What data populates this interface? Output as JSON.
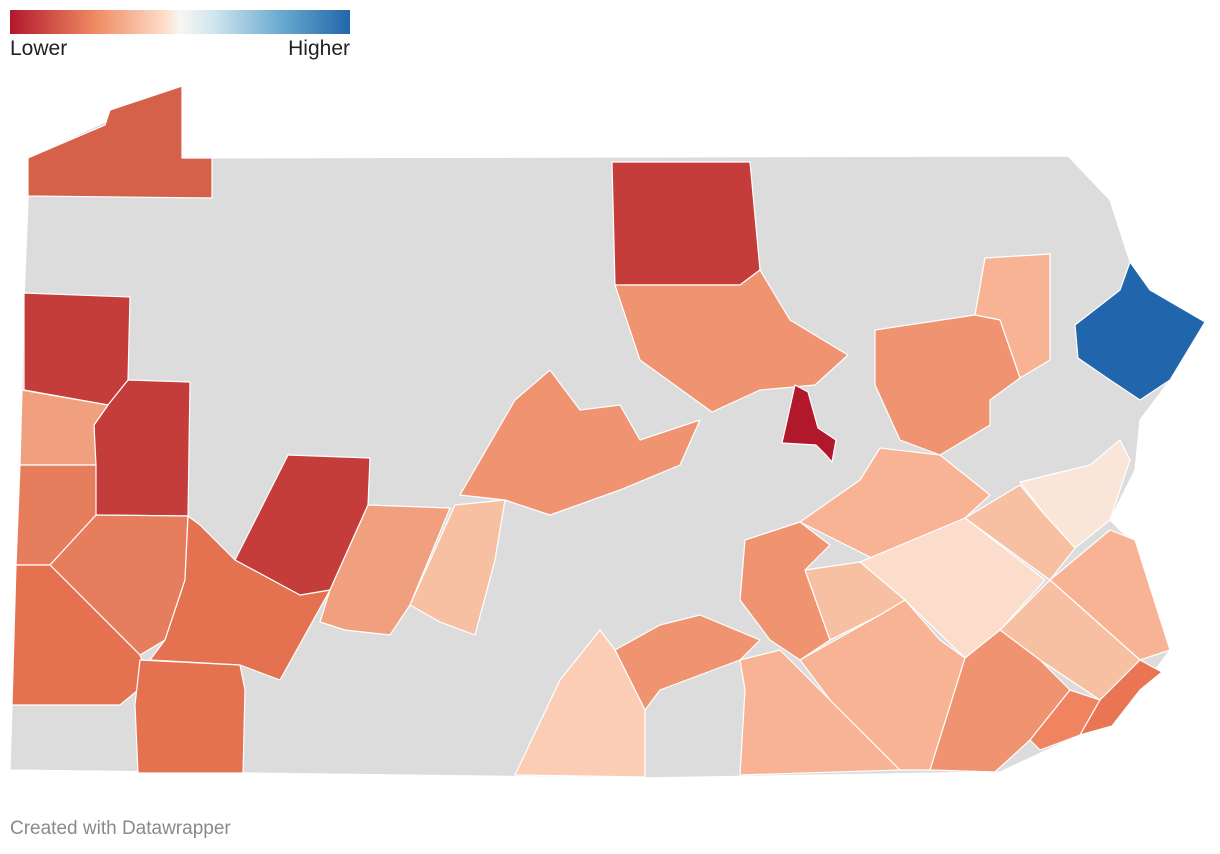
{
  "legend": {
    "low_label": "Lower",
    "high_label": "Higher",
    "scale_colors": [
      "#b2182b",
      "#ef8a62",
      "#fddbc7",
      "#f7f7f0",
      "#d1e5f0",
      "#67a9cf",
      "#2166ac"
    ]
  },
  "footer": {
    "credit": "Created with Datawrapper"
  },
  "colors": {
    "no_data": "#dcdcdc",
    "border": "#ffffff"
  }
}
